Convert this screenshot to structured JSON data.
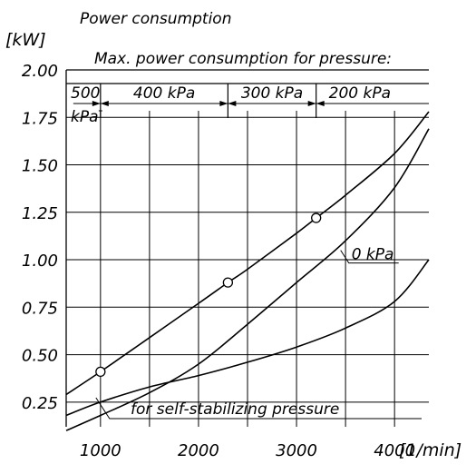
{
  "chart_data": {
    "type": "line",
    "title": "Power consumption",
    "y_unit": "[kW]",
    "x_unit": "[1/min]",
    "xlim": [
      650,
      4350
    ],
    "ylim": [
      0.12,
      2.0
    ],
    "x_ticks": [
      1000,
      2000,
      3000,
      4000
    ],
    "x_tick_labels": [
      "1000",
      "2000",
      "3000",
      "4000"
    ],
    "y_ticks": [
      0.25,
      0.5,
      0.75,
      1.0,
      1.25,
      1.5,
      1.75,
      2.0
    ],
    "y_tick_labels": [
      "0.25",
      "0.50",
      "0.75",
      "1.00",
      "1.25",
      "1.50",
      "1.75",
      "2.00"
    ],
    "grid": true,
    "grid_x": [
      1000,
      1500,
      2000,
      2500,
      3000,
      3500,
      4000
    ],
    "header_text": "Max. power consumption for pressure:",
    "zones": [
      {
        "label": "500",
        "label2": "kPa",
        "x_start": 650,
        "x_end": 1000
      },
      {
        "label": "400 kPa",
        "x_start": 1000,
        "x_end": 2300
      },
      {
        "label": "300 kPa",
        "x_start": 2300,
        "x_end": 3200
      },
      {
        "label": "200 kPa",
        "x_start": 3200,
        "x_end": 4350
      }
    ],
    "series": [
      {
        "x": [
          650,
          1000,
          1500,
          2000,
          2300,
          2500,
          3000,
          3200,
          3500,
          4000,
          4350
        ],
        "y": [
          0.29,
          0.41,
          0.59,
          0.77,
          0.88,
          0.95,
          1.14,
          1.22,
          1.34,
          1.56,
          1.78
        ]
      },
      {
        "label": "0 kPa",
        "x": [
          650,
          1000,
          1500,
          2000,
          2500,
          3000,
          3500,
          4000,
          4350
        ],
        "y": [
          0.1,
          0.18,
          0.3,
          0.45,
          0.66,
          0.88,
          1.1,
          1.38,
          1.69
        ]
      },
      {
        "x": [
          650,
          1000,
          1500,
          2000,
          2500,
          3000,
          3500,
          4000,
          4350
        ],
        "y": [
          0.18,
          0.25,
          0.33,
          0.39,
          0.46,
          0.54,
          0.64,
          0.78,
          1.0
        ]
      }
    ],
    "points": [
      {
        "x": 1000,
        "y": 0.41
      },
      {
        "x": 2300,
        "y": 0.88
      },
      {
        "x": 3200,
        "y": 1.22
      }
    ],
    "bottom_label": "for self-stabilizing pressure"
  }
}
